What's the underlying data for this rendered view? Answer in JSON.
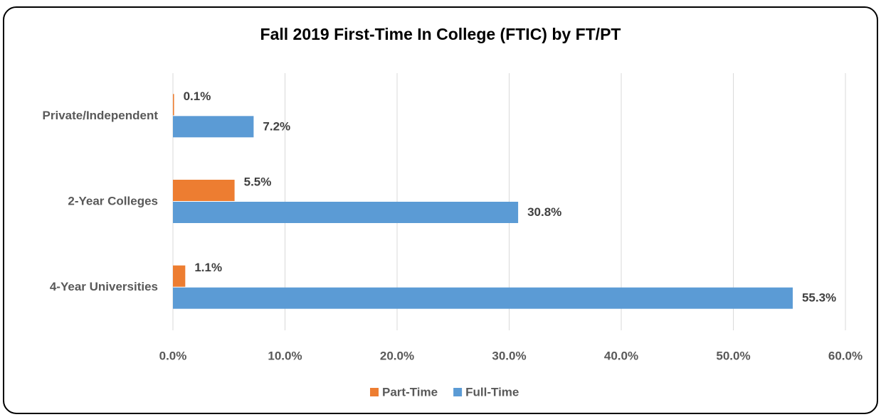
{
  "chart_data": {
    "type": "hbar",
    "title": "Fall 2019 First-Time In College (FTIC) by FT/PT",
    "categories": [
      "Private/Independent",
      "2-Year Colleges",
      "4-Year Universities"
    ],
    "series": [
      {
        "name": "Part-Time",
        "color": "#ed7d31",
        "values": [
          0.1,
          5.5,
          1.1
        ],
        "value_labels": [
          "0.1%",
          "5.5%",
          "1.1%"
        ]
      },
      {
        "name": "Full-Time",
        "color": "#5b9bd5",
        "values": [
          7.2,
          30.8,
          55.3
        ],
        "value_labels": [
          "7.2%",
          "30.8%",
          "55.3%"
        ]
      }
    ],
    "xlim": [
      0,
      60
    ],
    "xticks": [
      {
        "value": 0,
        "label": "0.0%"
      },
      {
        "value": 10,
        "label": "10.0%"
      },
      {
        "value": 20,
        "label": "20.0%"
      },
      {
        "value": 30,
        "label": "30.0%"
      },
      {
        "value": 40,
        "label": "40.0%"
      },
      {
        "value": 50,
        "label": "50.0%"
      },
      {
        "value": 60,
        "label": "60.0%"
      }
    ],
    "grid": true,
    "legend": "bottom"
  }
}
